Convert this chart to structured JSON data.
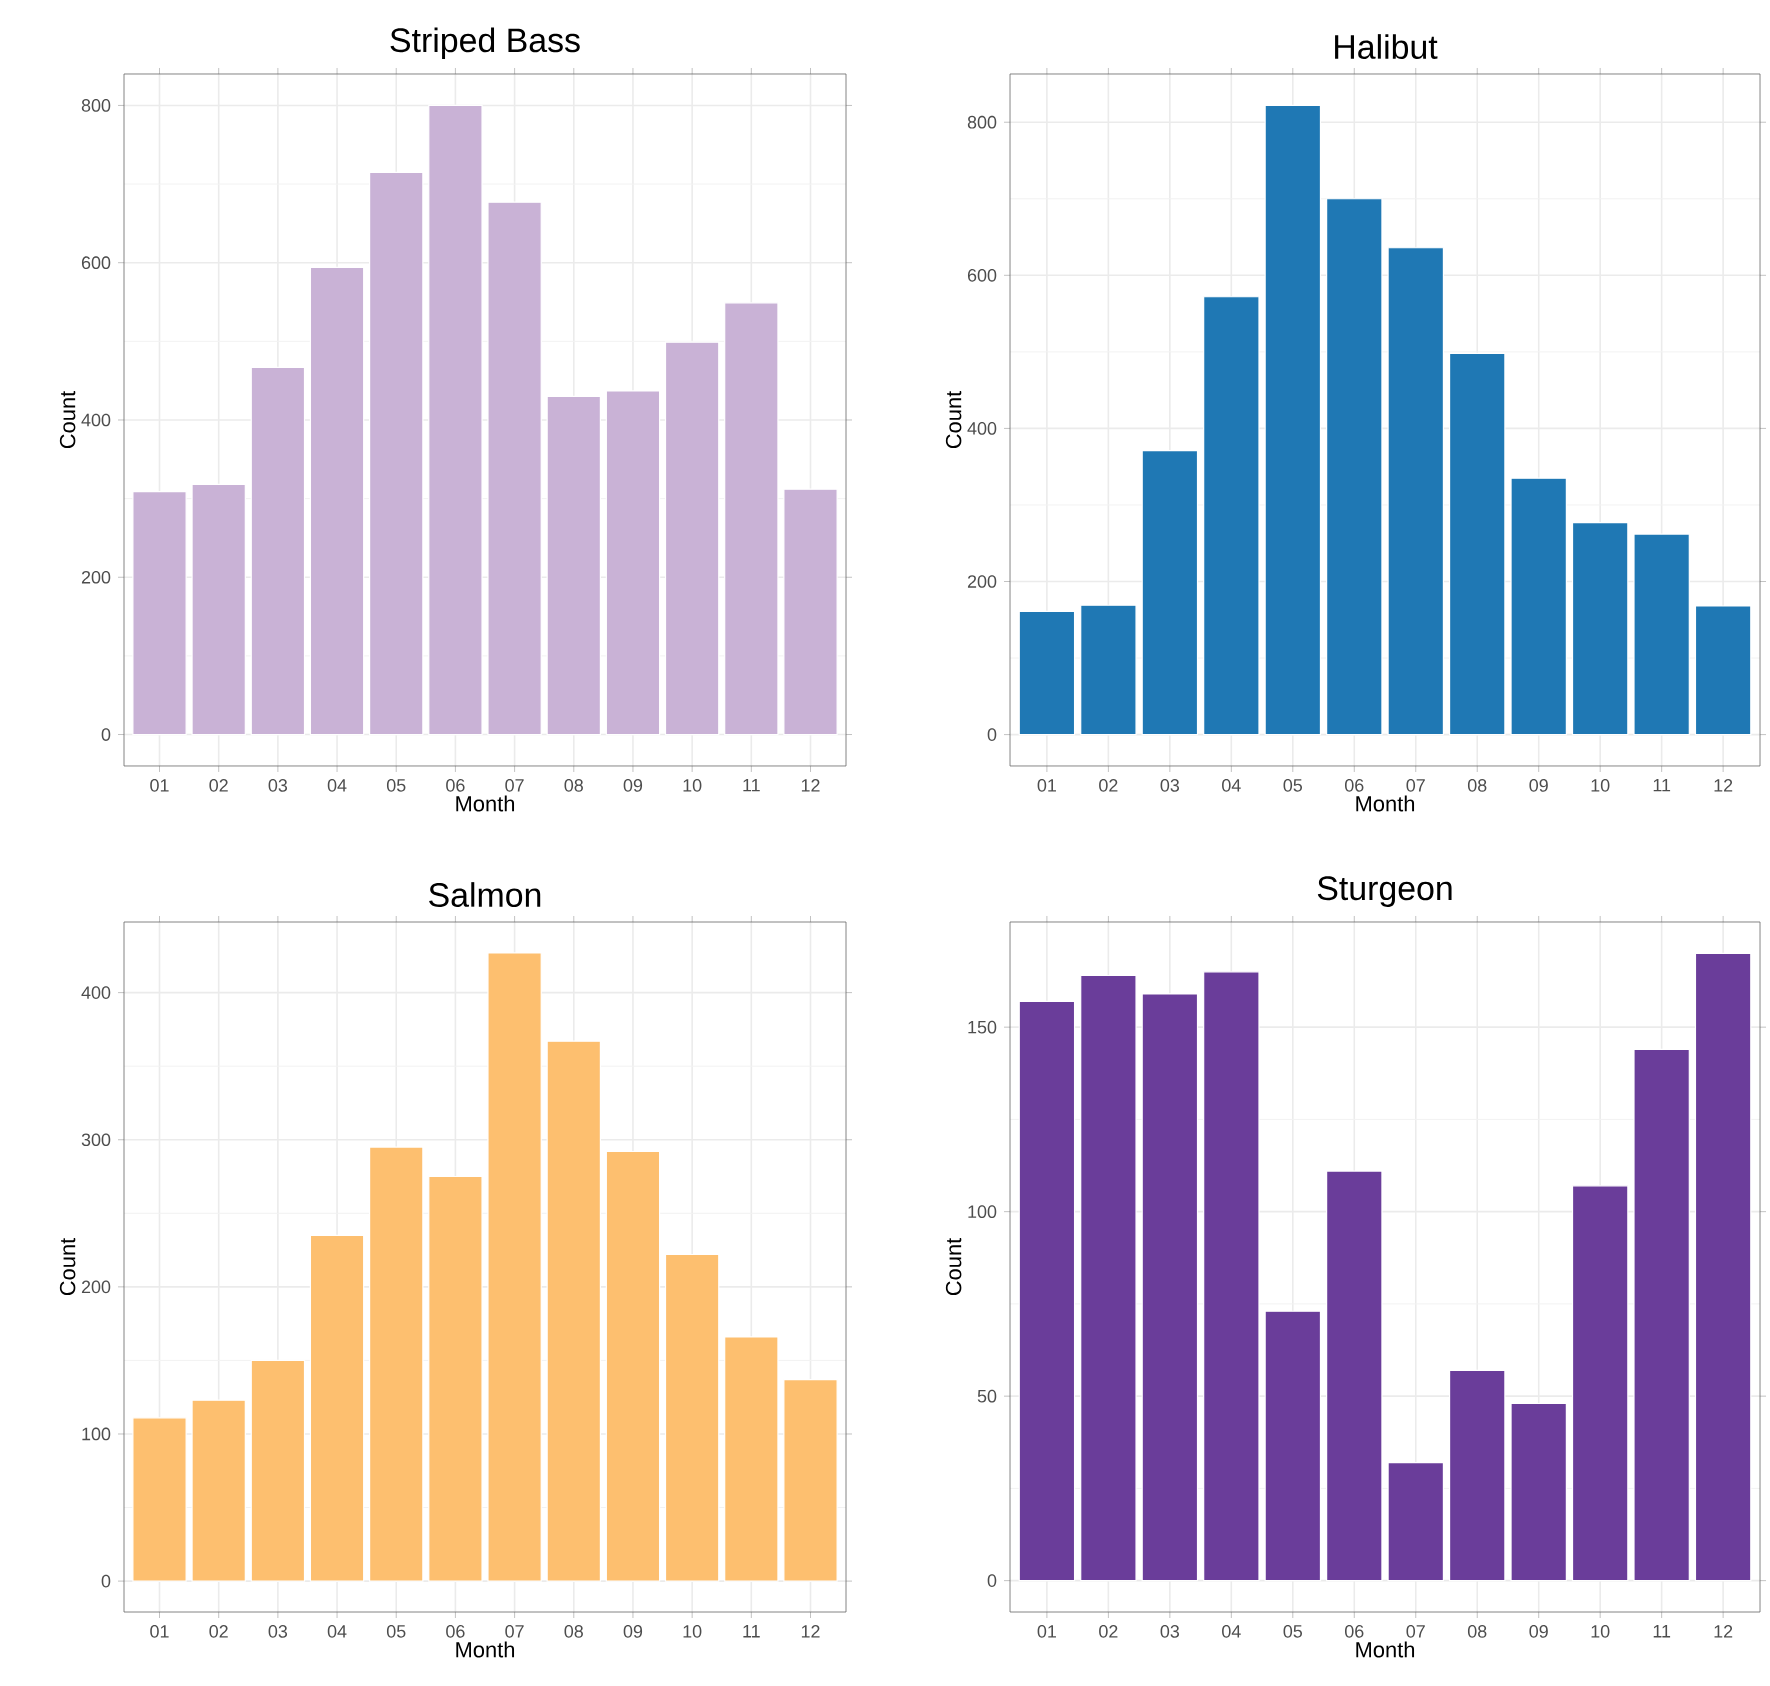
{
  "chart_data": [
    {
      "type": "bar",
      "title": "Striped Bass",
      "xlabel": "Month",
      "ylabel": "Count",
      "categories": [
        "01",
        "02",
        "03",
        "04",
        "05",
        "06",
        "07",
        "08",
        "09",
        "10",
        "11",
        "12"
      ],
      "values": [
        309,
        318,
        467,
        594,
        715,
        800,
        677,
        430,
        437,
        499,
        549,
        312
      ],
      "color": "#c9b2d6",
      "ylim": [
        -40,
        840
      ],
      "yticks": [
        0,
        200,
        400,
        600,
        800
      ],
      "grid": true
    },
    {
      "type": "bar",
      "title": "Halibut",
      "xlabel": "Month",
      "ylabel": "Count",
      "categories": [
        "01",
        "02",
        "03",
        "04",
        "05",
        "06",
        "07",
        "08",
        "09",
        "10",
        "11",
        "12"
      ],
      "values": [
        161,
        169,
        371,
        572,
        822,
        700,
        636,
        498,
        335,
        277,
        262,
        168
      ],
      "color": "#1f78b4",
      "ylim": [
        -41,
        863
      ],
      "yticks": [
        0,
        200,
        400,
        600,
        800
      ],
      "grid": true
    },
    {
      "type": "bar",
      "title": "Salmon",
      "xlabel": "Month",
      "ylabel": "Count",
      "categories": [
        "01",
        "02",
        "03",
        "04",
        "05",
        "06",
        "07",
        "08",
        "09",
        "10",
        "11",
        "12"
      ],
      "values": [
        111,
        123,
        150,
        235,
        295,
        275,
        427,
        367,
        292,
        222,
        166,
        137
      ],
      "color": "#fdbf6f",
      "ylim": [
        -21,
        448
      ],
      "yticks": [
        0,
        100,
        200,
        300,
        400
      ],
      "grid": true
    },
    {
      "type": "bar",
      "title": "Sturgeon",
      "xlabel": "Month",
      "ylabel": "Count",
      "categories": [
        "01",
        "02",
        "03",
        "04",
        "05",
        "06",
        "07",
        "08",
        "09",
        "10",
        "11",
        "12"
      ],
      "values": [
        157,
        164,
        159,
        165,
        73,
        111,
        32,
        57,
        48,
        107,
        144,
        170
      ],
      "color": "#6a3d9a",
      "ylim": [
        -8.5,
        178.5
      ],
      "yticks": [
        0,
        50,
        100,
        150
      ],
      "grid": true
    }
  ]
}
